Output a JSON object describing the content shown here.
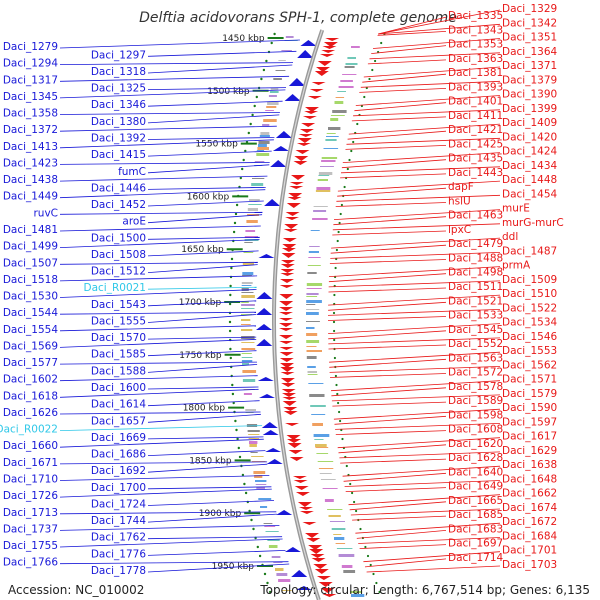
{
  "title": "Delftia acidovorans SPH-1, complete genome",
  "footer": {
    "accession": "Accession: NC_010002",
    "topology": "Topology: circular; Length: 6,767,514 bp; Genes: 6,135"
  },
  "colors": {
    "reverse": "#1818d8",
    "forward": "#e81818",
    "rna": "#30c8e8",
    "backbone": "#9a9a9a",
    "tick": "#1a7a1a"
  },
  "scale_ticks": [
    "1450 kbp",
    "1500 kbp",
    "1550 kbp",
    "1600 kbp",
    "1650 kbp",
    "1700 kbp",
    "1750 kbp",
    "1800 kbp",
    "1850 kbp",
    "1900 kbp",
    "1950 kbp"
  ],
  "left_labels": [
    "Daci_1279",
    "Daci_1297",
    "Daci_1294",
    "Daci_1318",
    "Daci_1317",
    "Daci_1325",
    "Daci_1345",
    "Daci_1346",
    "Daci_1358",
    "Daci_1380",
    "Daci_1372",
    "Daci_1392",
    "Daci_1413",
    "Daci_1415",
    "Daci_1423",
    "fumC",
    "Daci_1438",
    "Daci_1446",
    "Daci_1449",
    "Daci_1452",
    "ruvC",
    "aroE",
    "Daci_1481",
    "Daci_1500",
    "Daci_1499",
    "Daci_1508",
    "Daci_1507",
    "Daci_1512",
    "Daci_1518",
    "Daci_R0021",
    "Daci_1530",
    "Daci_1543",
    "Daci_1544",
    "Daci_1555",
    "Daci_1554",
    "Daci_1570",
    "Daci_1569",
    "Daci_1585",
    "Daci_1577",
    "Daci_1588",
    "Daci_1602",
    "Daci_1600",
    "Daci_1618",
    "Daci_1614",
    "Daci_1626",
    "Daci_1657",
    "Daci_R0022",
    "Daci_1669",
    "Daci_1660",
    "Daci_1686",
    "Daci_1671",
    "Daci_1692",
    "Daci_1710",
    "Daci_1700",
    "Daci_1726",
    "Daci_1724",
    "Daci_1713",
    "Daci_1744",
    "Daci_1737",
    "Daci_1762",
    "Daci_1755",
    "Daci_1776",
    "Daci_1766",
    "Daci_1778"
  ],
  "right_labels": [
    "Daci_1329",
    "Daci_1335",
    "Daci_1342",
    "Daci_1343",
    "Daci_1351",
    "Daci_1353",
    "Daci_1364",
    "Daci_1363",
    "Daci_1371",
    "Daci_1381",
    "Daci_1379",
    "Daci_1393",
    "Daci_1390",
    "Daci_1401",
    "Daci_1399",
    "Daci_1411",
    "Daci_1409",
    "Daci_1421",
    "Daci_1420",
    "Daci_1425",
    "Daci_1424",
    "Daci_1435",
    "Daci_1434",
    "Daci_1443",
    "Daci_1448",
    "dapF",
    "Daci_1454",
    "hslU",
    "murE",
    "Daci_1463",
    "murG-murC",
    "lpxC",
    "ddl",
    "Daci_1479",
    "Daci_1487",
    "Daci_1488",
    "prmA",
    "Daci_1498",
    "Daci_1509",
    "Daci_1511",
    "Daci_1510",
    "Daci_1521",
    "Daci_1522",
    "Daci_1533",
    "Daci_1534",
    "Daci_1545",
    "Daci_1546",
    "Daci_1552",
    "Daci_1553",
    "Daci_1563",
    "Daci_1562",
    "Daci_1572",
    "Daci_1571",
    "Daci_1578",
    "Daci_1579",
    "Daci_1589",
    "Daci_1590",
    "Daci_1598",
    "Daci_1597",
    "Daci_1608",
    "Daci_1617",
    "Daci_1620",
    "Daci_1629",
    "Daci_1628",
    "Daci_1638",
    "Daci_1640",
    "Daci_1648",
    "Daci_1649",
    "Daci_1662",
    "Daci_1665",
    "Daci_1674",
    "Daci_1685",
    "Daci_1672",
    "Daci_1683",
    "Daci_1684",
    "Daci_1697",
    "Daci_1701",
    "Daci_1714",
    "Daci_1703"
  ]
}
